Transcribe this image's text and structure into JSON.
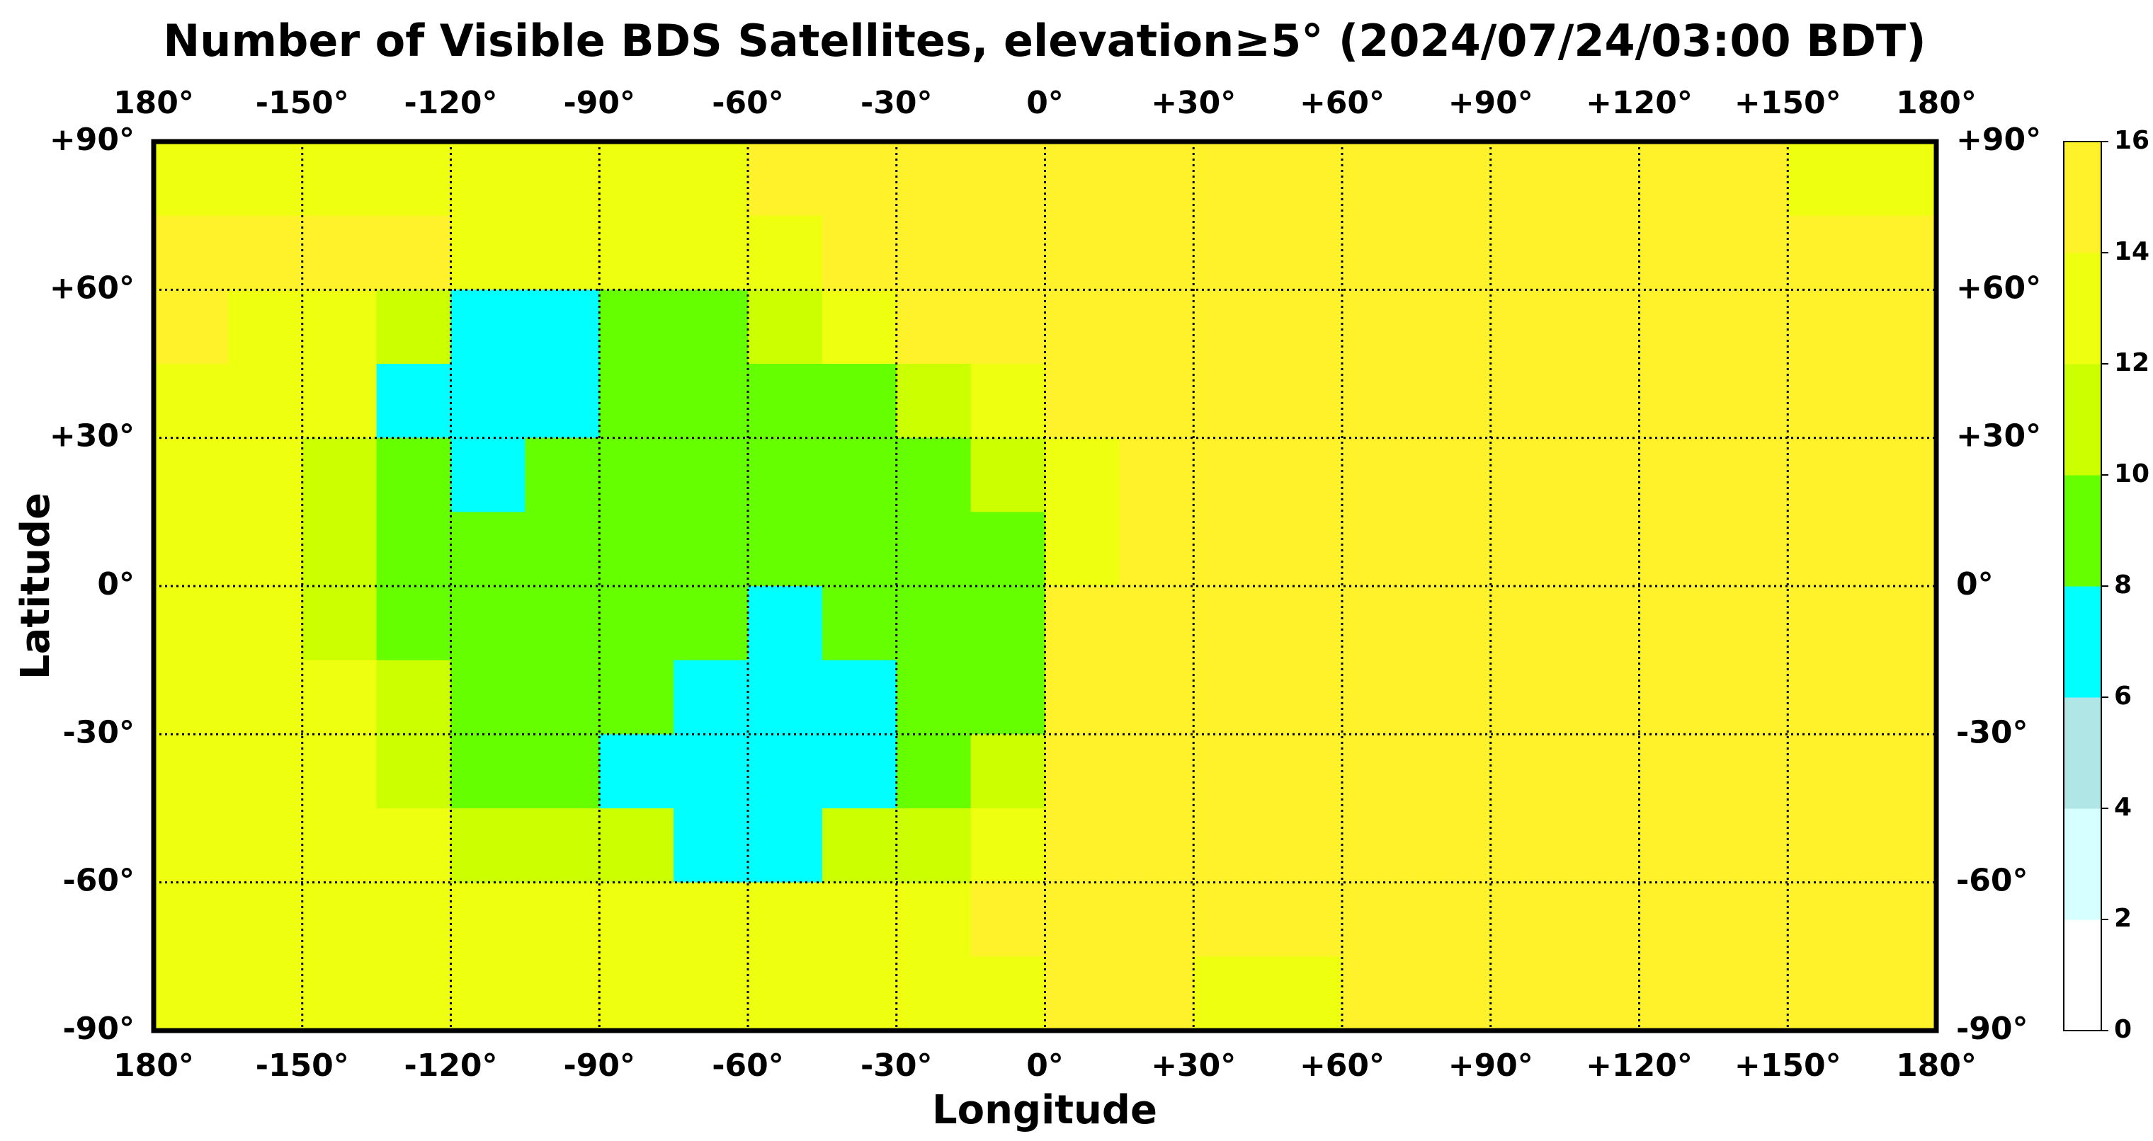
{
  "chart_data": {
    "type": "map-grid",
    "title": "Number of Visible BDS Satellites, elevation≥5° (2024/07/24/03:00 BDT)",
    "x_label": "Longitude",
    "y_label": "Latitude",
    "xlim": [
      -180,
      180
    ],
    "ylim": [
      -90,
      90
    ],
    "xticks": [
      {
        "value": -180,
        "label": "180°"
      },
      {
        "value": -150,
        "label": "-150°"
      },
      {
        "value": -120,
        "label": "-120°"
      },
      {
        "value": -90,
        "label": "-90°"
      },
      {
        "value": -60,
        "label": "-60°"
      },
      {
        "value": -30,
        "label": "-30°"
      },
      {
        "value": 0,
        "label": "0°"
      },
      {
        "value": 30,
        "label": "+30°"
      },
      {
        "value": 60,
        "label": "+60°"
      },
      {
        "value": 90,
        "label": "+90°"
      },
      {
        "value": 120,
        "label": "+120°"
      },
      {
        "value": 150,
        "label": "+150°"
      },
      {
        "value": 180,
        "label": "180°"
      }
    ],
    "yticks": [
      {
        "value": 90,
        "label": "+90°"
      },
      {
        "value": 60,
        "label": "+60°"
      },
      {
        "value": 30,
        "label": "+30°"
      },
      {
        "value": 0,
        "label": "0°"
      },
      {
        "value": -30,
        "label": "-30°"
      },
      {
        "value": -60,
        "label": "-60°"
      },
      {
        "value": -90,
        "label": "-90°"
      }
    ],
    "grid": true,
    "colorbar": {
      "ticks": [
        0,
        2,
        4,
        6,
        8,
        10,
        12,
        14,
        16
      ],
      "colors": [
        "#ffffff",
        "#d6ffff",
        "#b0e6e6",
        "#00ffff",
        "#66ff00",
        "#ccff00",
        "#eeff10",
        "#fff22a"
      ]
    },
    "field": {
      "lon_edges": [
        -180,
        -165,
        -150,
        -135,
        -120,
        -105,
        -90,
        -75,
        -60,
        -45,
        -30,
        -15,
        0,
        15,
        30,
        45,
        60,
        75,
        90,
        105,
        120,
        135,
        150,
        165,
        180
      ],
      "lat_edges": [
        90,
        75,
        60,
        45,
        30,
        15,
        0,
        -15,
        -30,
        -45,
        -60,
        -75,
        -90
      ],
      "values": [
        [
          13,
          13,
          13,
          13,
          13,
          13,
          13,
          13,
          15,
          15,
          15,
          15,
          15,
          15,
          15,
          15,
          15,
          15,
          15,
          15,
          15,
          15,
          13,
          13
        ],
        [
          15,
          15,
          15,
          15,
          13,
          13,
          13,
          13,
          13,
          15,
          15,
          15,
          15,
          15,
          15,
          15,
          15,
          15,
          15,
          15,
          15,
          15,
          15,
          15
        ],
        [
          15,
          13,
          13,
          11,
          7,
          7,
          9,
          9,
          11,
          13,
          15,
          15,
          15,
          15,
          15,
          15,
          15,
          15,
          15,
          15,
          15,
          15,
          15,
          15
        ],
        [
          13,
          13,
          13,
          7,
          7,
          7,
          9,
          9,
          9,
          9,
          11,
          13,
          15,
          15,
          15,
          15,
          15,
          15,
          15,
          15,
          15,
          15,
          15,
          15
        ],
        [
          13,
          13,
          11,
          9,
          7,
          9,
          9,
          9,
          9,
          9,
          9,
          11,
          13,
          15,
          15,
          15,
          15,
          15,
          15,
          15,
          15,
          15,
          15,
          15
        ],
        [
          13,
          13,
          11,
          9,
          9,
          9,
          9,
          9,
          9,
          9,
          9,
          9,
          13,
          15,
          15,
          15,
          15,
          15,
          15,
          15,
          15,
          15,
          15,
          15
        ],
        [
          13,
          13,
          11,
          9,
          9,
          9,
          9,
          9,
          7,
          9,
          9,
          9,
          15,
          15,
          15,
          15,
          15,
          15,
          15,
          15,
          15,
          15,
          15,
          15
        ],
        [
          13,
          13,
          13,
          11,
          9,
          9,
          9,
          7,
          7,
          7,
          9,
          9,
          15,
          15,
          15,
          15,
          15,
          15,
          15,
          15,
          15,
          15,
          15,
          15
        ],
        [
          13,
          13,
          13,
          11,
          9,
          9,
          7,
          7,
          7,
          7,
          9,
          11,
          15,
          15,
          15,
          15,
          15,
          15,
          15,
          15,
          15,
          15,
          15,
          15
        ],
        [
          13,
          13,
          13,
          13,
          11,
          11,
          11,
          7,
          7,
          11,
          11,
          13,
          15,
          15,
          15,
          15,
          15,
          15,
          15,
          15,
          15,
          15,
          15,
          15
        ],
        [
          13,
          13,
          13,
          13,
          13,
          13,
          13,
          13,
          13,
          13,
          13,
          15,
          15,
          15,
          15,
          15,
          15,
          15,
          15,
          15,
          15,
          15,
          15,
          15
        ],
        [
          13,
          13,
          13,
          13,
          13,
          13,
          13,
          13,
          13,
          13,
          13,
          13,
          15,
          15,
          13,
          13,
          15,
          15,
          15,
          15,
          15,
          15,
          15,
          15
        ]
      ]
    }
  }
}
